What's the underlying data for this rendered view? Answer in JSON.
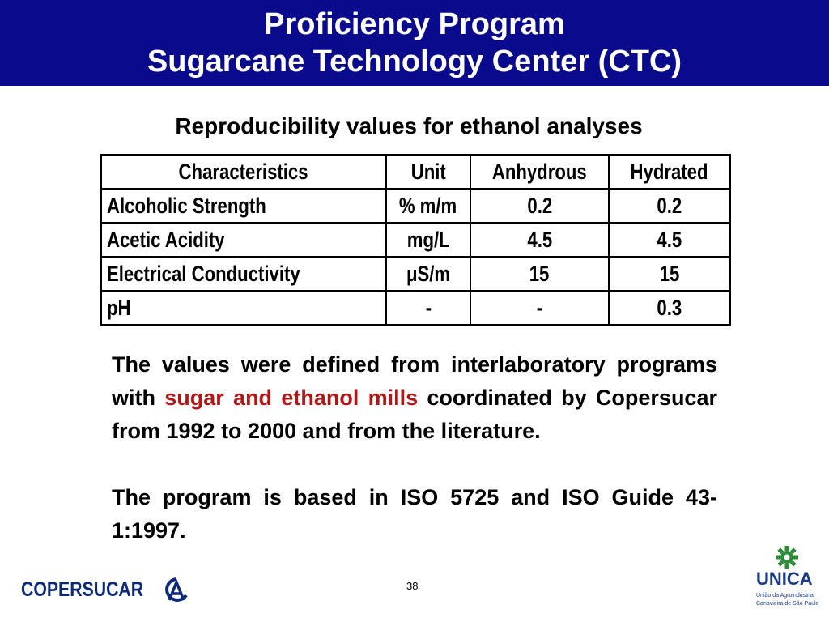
{
  "header": {
    "title_line1": "Proficiency Program",
    "title_line2": "Sugarcane Technology Center (CTC)"
  },
  "subtitle": "Reproducibility values for ethanol analyses",
  "table": {
    "columns": [
      "Characteristics",
      "Unit",
      "Anhydrous",
      "Hydrated"
    ],
    "rows": [
      [
        "Alcoholic Strength",
        "% m/m",
        "0.2",
        "0.2"
      ],
      [
        "Acetic Acidity",
        "mg/L",
        "4.5",
        "4.5"
      ],
      [
        "Electrical Conductivity",
        "μS/m",
        "15",
        "15"
      ],
      [
        "pH",
        "-",
        "-",
        "0.3"
      ]
    ]
  },
  "body": {
    "p1_a": "The values were defined from interlaboratory programs with",
    "p1_highlight": "sugar and ethanol mills",
    "p1_b": "coordinated by Copersucar from 1992 to 2000 and from the literature.",
    "p2": "The program is based in ISO 5725 and ISO Guide 43-1:1997."
  },
  "footer": {
    "page_number": "38",
    "left_logo": "COPERSUCAR",
    "right_logo": "UNICA",
    "right_logo_sub1": "União da Agroindústria",
    "right_logo_sub2": "Canavieira de São Paulo"
  },
  "colors": {
    "header_bg": "#0a0a8c",
    "highlight": "#b01818",
    "logo_blue": "#0d2a7a",
    "unica_green": "#2e8b3a"
  }
}
